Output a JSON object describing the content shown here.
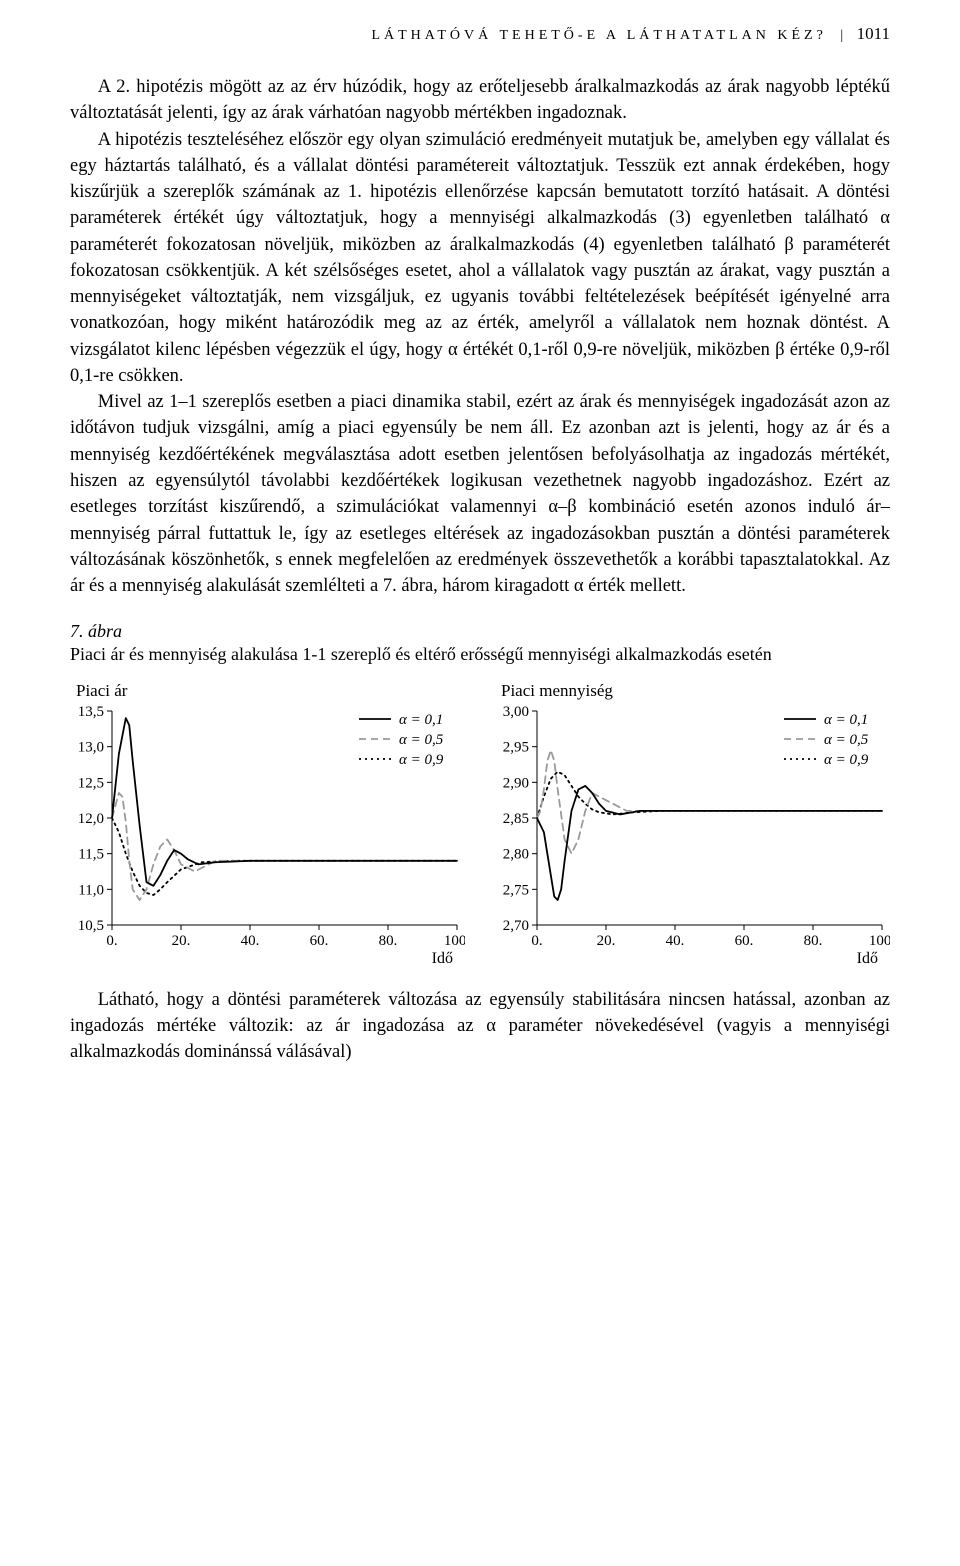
{
  "header": {
    "running_title": "LÁTHATÓVÁ TEHETŐ-E A LÁTHATATLAN KÉZ?",
    "page_number": "1011"
  },
  "paragraphs": {
    "p1": "A 2. hipotézis mögött az az érv húzódik, hogy az erőteljesebb áralkalmazkodás az árak nagyobb léptékű változtatását jelenti, így az árak várhatóan nagyobb mértékben ingadoznak.",
    "p2": "A hipotézis teszteléséhez először egy olyan szimuláció eredményeit mutatjuk be, amelyben egy vállalat és egy háztartás található, és a vállalat döntési paramétereit változtatjuk. Tesszük ezt annak érdekében, hogy kiszűrjük a szereplők számának az 1. hipotézis ellenőrzése kapcsán bemutatott torzító hatásait. A döntési paraméterek értékét úgy változtatjuk, hogy a mennyiségi alkalmazkodás (3) egyenletben található α paraméterét fokozatosan növeljük, miközben az áralkalmazkodás (4) egyenletben található β paraméterét fokozatosan csökkentjük. A két szélsőséges esetet, ahol a vállalatok vagy pusztán az árakat, vagy pusztán a mennyiségeket változtatják, nem vizsgáljuk, ez ugyanis további feltételezések beépítését igényelné arra vonatkozóan, hogy miként határozódik meg az az érték, amelyről a vállalatok nem hoznak döntést. A vizsgálatot kilenc lépésben végezzük el úgy, hogy α értékét 0,1-ről 0,9-re növeljük, miközben β értéke 0,9-ről 0,1-re csökken.",
    "p3": "Mivel az 1–1 szereplős esetben a piaci dinamika stabil, ezért az árak és mennyiségek ingadozását azon az időtávon tudjuk vizsgálni, amíg a piaci egyensúly be nem áll. Ez azonban azt is jelenti, hogy az ár és a mennyiség kezdőértékének megválasztása adott esetben jelentősen befolyásolhatja az ingadozás mértékét, hiszen az egyensúlytól távolabbi kezdőértékek logikusan vezethetnek nagyobb ingadozáshoz. Ezért az esetleges torzítást kiszűrendő, a szimulációkat valamennyi α–β kombináció esetén azonos induló ár–mennyiség párral futtattuk le, így az esetleges eltérések az ingadozásokban pusztán a döntési paraméterek változásának köszönhetők, s ennek megfelelően az eredmények összevethetők a korábbi tapasztalatokkal. Az ár és a mennyiség alakulását szemlélteti a 7. ábra, három kiragadott α érték mellett.",
    "p4": "Látható, hogy a döntési paraméterek változása az egyensúly stabilitására nincsen hatással, azonban az ingadozás mértéke változik: az ár ingadozása az α paraméter növekedésével (vagyis a mennyiségi alkalmazkodás dominánssá válásával)"
  },
  "figure": {
    "label": "7. ábra",
    "caption": "Piaci ár és mennyiség alakulása 1-1 szereplő és eltérő erősségű mennyiségi alkalmazkodás esetén",
    "xlabel": "Idő",
    "legend": [
      "α = 0,1",
      "α = 0,5",
      "α = 0,9"
    ],
    "colors": {
      "series1": "#000000",
      "series2": "#9a9a9a",
      "series3": "#000000",
      "axis": "#000000",
      "background": "#ffffff"
    },
    "line_styles": {
      "series1": "solid",
      "series2": "dashed",
      "series3": "dotted"
    },
    "line_width": 1.8,
    "left_chart": {
      "title": "Piaci ár",
      "xlim": [
        0,
        100
      ],
      "xticks": [
        "0.",
        "20.",
        "40.",
        "60.",
        "80.",
        "100."
      ],
      "ylim": [
        10.5,
        13.5
      ],
      "yticks": [
        "10,5",
        "11,0",
        "11,5",
        "12,0",
        "12,5",
        "13,0",
        "13,5"
      ],
      "series1": {
        "x": [
          0,
          2,
          4,
          5,
          6,
          8,
          10,
          12,
          14,
          16,
          18,
          20,
          22,
          25,
          30,
          40,
          60,
          100
        ],
        "y": [
          12.0,
          12.9,
          13.4,
          13.3,
          12.8,
          11.9,
          11.1,
          11.05,
          11.2,
          11.4,
          11.55,
          11.5,
          11.42,
          11.35,
          11.38,
          11.4,
          11.4,
          11.4
        ]
      },
      "series2": {
        "x": [
          0,
          2,
          3,
          4,
          5,
          6,
          8,
          10,
          12,
          14,
          16,
          18,
          20,
          24,
          30,
          40,
          60,
          100
        ],
        "y": [
          12.0,
          12.35,
          12.3,
          11.95,
          11.4,
          11.0,
          10.85,
          11.0,
          11.35,
          11.6,
          11.7,
          11.55,
          11.35,
          11.25,
          11.4,
          11.4,
          11.4,
          11.4
        ]
      },
      "series3": {
        "x": [
          0,
          2,
          4,
          6,
          8,
          10,
          12,
          14,
          16,
          20,
          26,
          34,
          44,
          60,
          100
        ],
        "y": [
          12.0,
          11.8,
          11.5,
          11.25,
          11.05,
          10.95,
          10.92,
          11.0,
          11.1,
          11.28,
          11.38,
          11.4,
          11.4,
          11.4,
          11.4
        ]
      }
    },
    "right_chart": {
      "title": "Piaci mennyiség",
      "xlim": [
        0,
        100
      ],
      "xticks": [
        "0.",
        "20.",
        "40.",
        "60.",
        "80.",
        "100."
      ],
      "ylim": [
        2.7,
        3.0
      ],
      "yticks": [
        "2,70",
        "2,75",
        "2,80",
        "2,85",
        "2,90",
        "2,95",
        "3,00"
      ],
      "series1": {
        "x": [
          0,
          2,
          3,
          4,
          5,
          6,
          7,
          8,
          10,
          12,
          14,
          16,
          18,
          20,
          24,
          30,
          40,
          60,
          100
        ],
        "y": [
          2.85,
          2.83,
          2.8,
          2.77,
          2.74,
          2.735,
          2.75,
          2.79,
          2.86,
          2.89,
          2.895,
          2.885,
          2.87,
          2.86,
          2.855,
          2.86,
          2.86,
          2.86,
          2.86
        ]
      },
      "series2": {
        "x": [
          0,
          1,
          2,
          3,
          4,
          5,
          6,
          8,
          10,
          12,
          14,
          16,
          20,
          26,
          34,
          60,
          100
        ],
        "y": [
          2.85,
          2.86,
          2.89,
          2.93,
          2.945,
          2.93,
          2.89,
          2.82,
          2.8,
          2.82,
          2.86,
          2.885,
          2.875,
          2.86,
          2.86,
          2.86,
          2.86
        ]
      },
      "series3": {
        "x": [
          0,
          2,
          4,
          6,
          8,
          10,
          12,
          14,
          16,
          18,
          22,
          28,
          36,
          50,
          100
        ],
        "y": [
          2.85,
          2.88,
          2.905,
          2.915,
          2.91,
          2.895,
          2.88,
          2.87,
          2.862,
          2.858,
          2.855,
          2.858,
          2.86,
          2.86,
          2.86
        ]
      }
    }
  }
}
